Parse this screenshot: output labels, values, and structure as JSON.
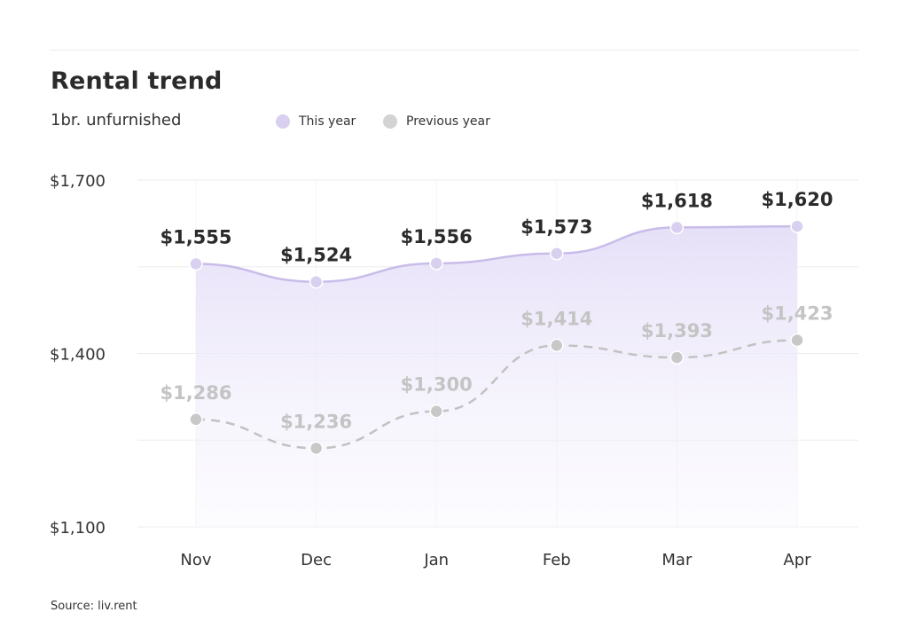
{
  "header": {
    "title": "Rental trend",
    "subtitle": "1br. unfurnished"
  },
  "legend": {
    "this_year": "This year",
    "previous_year": "Previous year"
  },
  "footer": {
    "source": "Source: liv.rent"
  },
  "colors": {
    "this_year": "#d9d0f0",
    "this_year_line": "#c9bce9",
    "previous_year": "#c8c8c8",
    "previous_line": "#c2c2c2",
    "previous_label": "#c4c4c4",
    "grid": "#ededed",
    "label_dark": "#2b2b2b"
  },
  "chart_data": {
    "type": "line",
    "title": "Rental trend",
    "subtitle": "1br. unfurnished",
    "categories": [
      "Nov",
      "Dec",
      "Jan",
      "Feb",
      "Mar",
      "Apr"
    ],
    "series": [
      {
        "name": "This year",
        "values": [
          1555,
          1524,
          1556,
          1573,
          1618,
          1620
        ],
        "labels": [
          "$1,555",
          "$1,524",
          "$1,556",
          "$1,573",
          "$1,618",
          "$1,620"
        ],
        "style": "solid-area"
      },
      {
        "name": "Previous year",
        "values": [
          1286,
          1236,
          1300,
          1414,
          1393,
          1423
        ],
        "labels": [
          "$1,286",
          "$1,236",
          "$1,300",
          "$1,414",
          "$1,393",
          "$1,423"
        ],
        "style": "dashed"
      }
    ],
    "ylim": [
      1100,
      1700
    ],
    "yticks": [
      1100,
      1400,
      1700
    ],
    "ytick_labels": [
      "$1,100",
      "$1,400",
      "$1,700"
    ],
    "grid": true,
    "legend_position": "top"
  }
}
